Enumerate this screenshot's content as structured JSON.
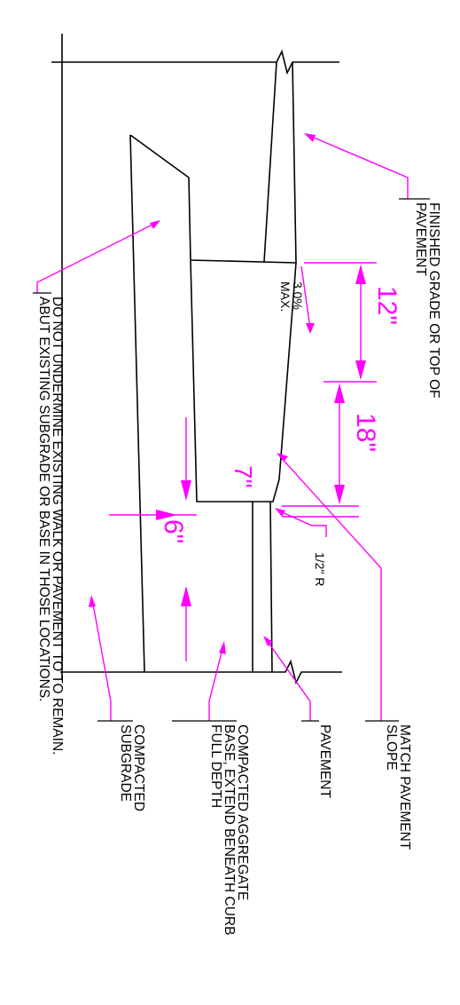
{
  "notes": {
    "finished_grade": [
      "FINISHED GRADE OR TOP OF",
      "PAVEMENT"
    ],
    "do_not_undermine": [
      "DO NOT UNDERMINE EXISTING WALK OR PAVEMENT TO  TO REMAIN.",
      "ABUT EXISTING SUBGRADE OR BASE IN THOSE LOCATIONS."
    ],
    "match_pavement_slope": [
      "MATCH PAVEMENT",
      "SLOPE"
    ],
    "pavement": [
      "PAVEMENT"
    ],
    "compacted_aggregate": [
      "COMPACTED AGGREGATE",
      "BASE, EXTEND BENEATH CURB",
      "FULL DEPTH"
    ],
    "compacted_subgrade": [
      "COMPACTED",
      "SUBGRADE"
    ],
    "slope_note": [
      "3.0%",
      "MAX."
    ],
    "radius_note": "1/2\" R"
  },
  "dimensions": {
    "d12": "12\"",
    "d18": "18\"",
    "d7": "7\"",
    "d6": "6\""
  },
  "colors": {
    "linework": "#000000",
    "dimension": "#ff00ff"
  }
}
